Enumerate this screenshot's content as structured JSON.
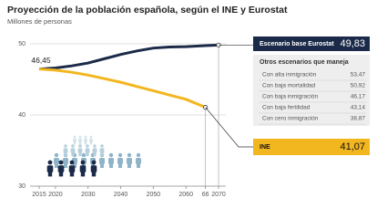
{
  "chart_data": {
    "type": "line",
    "title": "Proyección de la población española, según el INE y Eurostat",
    "subtitle": "Millones de personas",
    "x": [
      2015,
      2020,
      2025,
      2030,
      2035,
      2040,
      2045,
      2050,
      2055,
      2060,
      2066,
      2070
    ],
    "series": [
      {
        "name": "Escenario base Eurostat",
        "color": "#1b2a48",
        "values": [
          46.45,
          46.6,
          46.9,
          47.3,
          47.9,
          48.5,
          49.0,
          49.4,
          49.55,
          49.6,
          49.75,
          49.83
        ],
        "value_labels": [
          "46,45",
          null,
          null,
          null,
          null,
          null,
          null,
          null,
          null,
          null,
          null,
          "49,83"
        ]
      },
      {
        "name": "INE",
        "color": "#f2b61f",
        "values": [
          46.45,
          46.3,
          46.0,
          45.6,
          45.1,
          44.6,
          44.0,
          43.4,
          42.8,
          42.2,
          41.07,
          null
        ],
        "value_labels": [
          null,
          null,
          null,
          null,
          null,
          null,
          null,
          null,
          null,
          null,
          "41,07",
          null
        ]
      }
    ],
    "xlim": [
      2015,
      2070
    ],
    "xticks": [
      2015,
      2020,
      2030,
      2040,
      2050,
      2060,
      {
        "value": 2066,
        "label": "66"
      },
      2070
    ],
    "ylim": [
      30,
      50
    ],
    "yticks": [
      30,
      40,
      50
    ],
    "grid": true,
    "scenarios_title": "Otros escenarios que maneja",
    "scenarios": [
      {
        "name": "Con alta inmigración",
        "value": "53,47"
      },
      {
        "name": "Con baja mortalidad",
        "value": "50,92"
      },
      {
        "name": "Con baja inmigración",
        "value": "46,17"
      },
      {
        "name": "Con baja fertilidad",
        "value": "43,14"
      },
      {
        "name": "Con cero inmigración",
        "value": "38,87"
      }
    ]
  }
}
